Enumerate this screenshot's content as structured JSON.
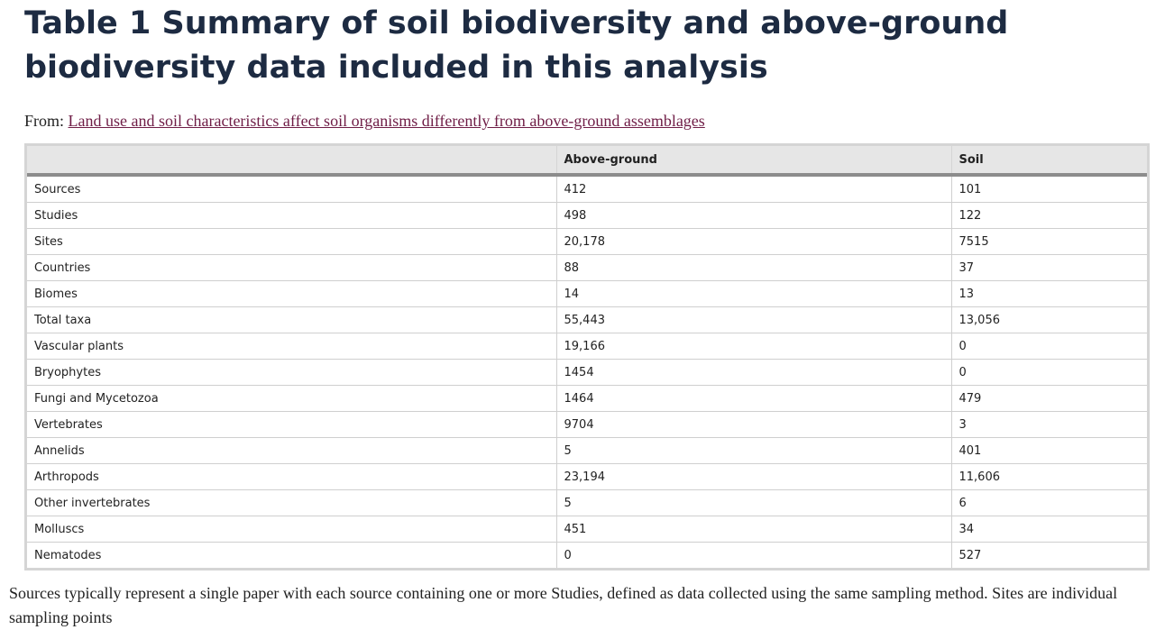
{
  "title": "Table 1 Summary of soil biodiversity and above-ground biodiversity data included in this analysis",
  "from": {
    "prefix": "From:",
    "link_text": "Land use and soil characteristics affect soil organisms differently from above-ground assemblages"
  },
  "table": {
    "headers": [
      "",
      "Above-ground",
      "Soil"
    ],
    "rows": [
      [
        "Sources",
        "412",
        "101"
      ],
      [
        "Studies",
        "498",
        "122"
      ],
      [
        "Sites",
        "20,178",
        "7515"
      ],
      [
        "Countries",
        "88",
        "37"
      ],
      [
        "Biomes",
        "14",
        "13"
      ],
      [
        "Total taxa",
        "55,443",
        "13,056"
      ],
      [
        "Vascular plants",
        "19,166",
        "0"
      ],
      [
        "Bryophytes",
        "1454",
        "0"
      ],
      [
        "Fungi and Mycetozoa",
        "1464",
        "479"
      ],
      [
        "Vertebrates",
        "9704",
        "3"
      ],
      [
        "Annelids",
        "5",
        "401"
      ],
      [
        "Arthropods",
        "23,194",
        "11,606"
      ],
      [
        "Other invertebrates",
        "5",
        "6"
      ],
      [
        "Molluscs",
        "451",
        "34"
      ],
      [
        "Nematodes",
        "0",
        "527"
      ]
    ]
  },
  "footnote": "Sources typically represent a single paper with each source containing one or more Studies, defined as data collected using the same sampling method. Sites are individual sampling points",
  "colors": {
    "title": "#1d2b42",
    "link": "#6f1d46",
    "header_bg": "#e6e6e6",
    "header_rule": "#8c8c8c"
  }
}
